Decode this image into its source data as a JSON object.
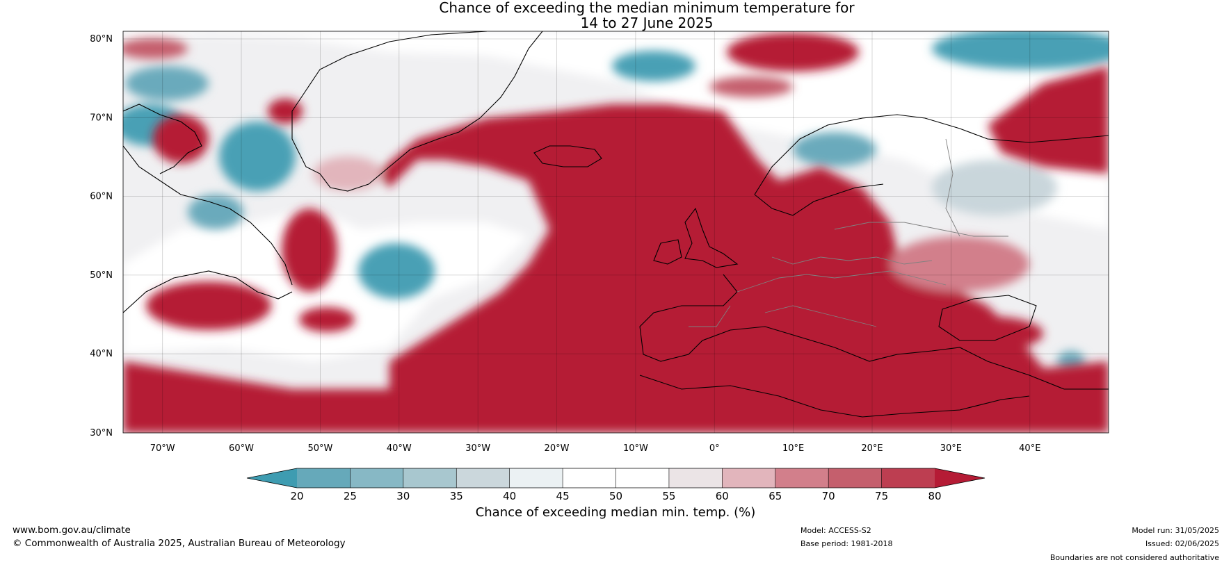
{
  "title": {
    "line1": "Chance of exceeding the median minimum temperature for",
    "line2": "14 to 27 June 2025"
  },
  "map": {
    "lat_labels": [
      "80°N",
      "70°N",
      "60°N",
      "50°N",
      "40°N",
      "30°N"
    ],
    "lon_labels": [
      "70°W",
      "60°W",
      "50°W",
      "40°W",
      "30°W",
      "20°W",
      "10°W",
      "0°",
      "10°E",
      "20°E",
      "30°E",
      "40°E"
    ],
    "extent": {
      "lon": [
        -75,
        50
      ],
      "lat": [
        30,
        81
      ]
    },
    "colors": {
      "warm": "#b51b35",
      "cool": "#4aa0b5",
      "neutral": "#ffffff",
      "coast": "#000000",
      "border": "#808080"
    }
  },
  "colorbar": {
    "ticks": [
      "20",
      "25",
      "30",
      "35",
      "40",
      "45",
      "50",
      "55",
      "60",
      "65",
      "70",
      "75",
      "80"
    ],
    "colors": [
      "#3e9cb1",
      "#66a9ba",
      "#87b8c5",
      "#a8c7cf",
      "#cbd7dc",
      "#ebf1f3",
      "#ffffff",
      "#ffffff",
      "#ebe4e6",
      "#e2b5bc",
      "#d27f8b",
      "#c55f6d",
      "#bd3e51",
      "#b51b35"
    ],
    "label": "Chance of exceeding median min. temp. (%)"
  },
  "footer": {
    "url": "www.bom.gov.au/climate",
    "copyright": "© Commonwealth of Australia 2025, Australian Bureau of Meteorology",
    "model": "Model: ACCESS-S2",
    "base_period": "Base period: 1981-2018",
    "model_run": "Model run: 31/05/2025",
    "issued": "Issued: 02/06/2025",
    "disclaimer": "Boundaries are not considered authoritative"
  }
}
